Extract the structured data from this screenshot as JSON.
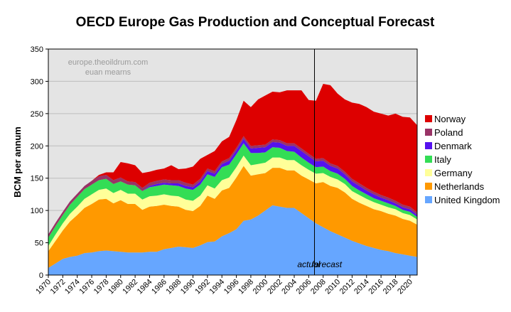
{
  "chart_data": {
    "type": "area",
    "title": "OECD Europe Gas Production and Conceptual Forecast",
    "xlabel": "",
    "ylabel": "BCM per annum",
    "xlim": [
      1970,
      2021
    ],
    "ylim": [
      0,
      350
    ],
    "y_ticks": [
      0,
      50,
      100,
      150,
      200,
      250,
      300,
      350
    ],
    "x_tick_labels": [
      "1970",
      "1972",
      "1974",
      "1976",
      "1978",
      "1980",
      "1982",
      "1984",
      "1986",
      "1988",
      "1990",
      "1992",
      "1994",
      "1996",
      "1998",
      "2000",
      "2002",
      "2004",
      "2006",
      "2008",
      "2010",
      "2012",
      "2014",
      "2016",
      "2018",
      "2020"
    ],
    "grid": true,
    "stacked": true,
    "legend_position": "right",
    "x": [
      1970,
      1971,
      1972,
      1973,
      1974,
      1975,
      1976,
      1977,
      1978,
      1979,
      1980,
      1981,
      1982,
      1983,
      1984,
      1985,
      1986,
      1987,
      1988,
      1989,
      1990,
      1991,
      1992,
      1993,
      1994,
      1995,
      1996,
      1997,
      1998,
      1999,
      2000,
      2001,
      2002,
      2003,
      2004,
      2005,
      2006,
      2007,
      2008,
      2009,
      2010,
      2011,
      2012,
      2013,
      2014,
      2015,
      2016,
      2017,
      2018,
      2019,
      2020,
      2021
    ],
    "series": [
      {
        "name": "United Kingdom",
        "color": "#66a6ff",
        "values": [
          11,
          18,
          25,
          28,
          30,
          34,
          35,
          37,
          38,
          37,
          36,
          35,
          35,
          35,
          36,
          36,
          40,
          42,
          44,
          43,
          42,
          46,
          51,
          52,
          60,
          65,
          71,
          84,
          86,
          92,
          100,
          108,
          106,
          104,
          104,
          96,
          88,
          80,
          74,
          68,
          63,
          58,
          53,
          49,
          45,
          42,
          39,
          37,
          34,
          32,
          30,
          28
        ]
      },
      {
        "name": "Netherlands",
        "color": "#ff9900",
        "values": [
          26,
          35,
          44,
          55,
          63,
          70,
          75,
          80,
          80,
          74,
          80,
          75,
          75,
          66,
          70,
          71,
          69,
          65,
          62,
          58,
          57,
          61,
          72,
          66,
          71,
          70,
          80,
          85,
          68,
          64,
          58,
          58,
          60,
          58,
          58,
          58,
          60,
          62,
          70,
          70,
          72,
          70,
          65,
          63,
          62,
          60,
          60,
          58,
          58,
          55,
          54,
          50
        ]
      },
      {
        "name": "Germany",
        "color": "#ffff99",
        "values": [
          8,
          10,
          11,
          12,
          13,
          14,
          15,
          15,
          16,
          16,
          16,
          16,
          16,
          16,
          16,
          16,
          16,
          16,
          16,
          16,
          16,
          16,
          16,
          16,
          16,
          16,
          16,
          16,
          16,
          16,
          16,
          16,
          16,
          16,
          16,
          16,
          15,
          15,
          14,
          14,
          13,
          13,
          12,
          12,
          11,
          11,
          10,
          10,
          10,
          9,
          9,
          8
        ]
      },
      {
        "name": "Italy",
        "color": "#33dd55",
        "values": [
          13,
          13,
          13,
          14,
          15,
          15,
          15,
          15,
          15,
          14,
          13,
          14,
          13,
          13,
          14,
          15,
          15,
          16,
          16,
          17,
          17,
          17,
          17,
          18,
          20,
          20,
          20,
          19,
          19,
          17,
          16,
          16,
          15,
          14,
          13,
          12,
          11,
          10,
          10,
          9,
          9,
          8,
          8,
          7,
          7,
          6,
          6,
          6,
          5,
          5,
          5,
          4
        ]
      },
      {
        "name": "Denmark",
        "color": "#5511ee",
        "values": [
          0,
          0,
          0,
          0,
          0,
          0,
          0,
          0,
          0,
          0,
          0,
          0,
          0,
          0,
          2,
          3,
          3,
          3,
          4,
          4,
          4,
          5,
          5,
          5,
          5,
          6,
          6,
          7,
          7,
          8,
          8,
          8,
          8,
          8,
          9,
          10,
          10,
          9,
          9,
          8,
          8,
          7,
          7,
          7,
          6,
          6,
          5,
          5,
          4,
          4,
          4,
          3
        ]
      },
      {
        "name": "Poland",
        "color": "#993366",
        "values": [
          5,
          5,
          5,
          5,
          5,
          5,
          6,
          6,
          6,
          6,
          6,
          5,
          5,
          5,
          5,
          5,
          5,
          5,
          5,
          5,
          4,
          4,
          4,
          4,
          4,
          4,
          4,
          4,
          4,
          4,
          4,
          4,
          4,
          4,
          4,
          4,
          4,
          4,
          4,
          4,
          4,
          4,
          4,
          4,
          4,
          4,
          4,
          4,
          4,
          4,
          4,
          4
        ]
      },
      {
        "name": "Norway",
        "color": "#dd0000",
        "values": [
          0,
          0,
          0,
          0,
          0,
          0,
          0,
          2,
          4,
          12,
          24,
          28,
          26,
          23,
          17,
          17,
          17,
          23,
          17,
          22,
          28,
          31,
          21,
          31,
          31,
          33,
          43,
          55,
          60,
          71,
          76,
          74,
          74,
          82,
          82,
          90,
          83,
          90,
          115,
          121,
          112,
          112,
          118,
          123,
          125,
          124,
          126,
          127,
          135,
          136,
          138,
          135
        ]
      }
    ],
    "annotations": [
      {
        "text": "actual",
        "x": 2006,
        "y": 12
      },
      {
        "text": "forecast",
        "x": 2008.5,
        "y": 12
      }
    ],
    "forecast_divider_x": 2006.8,
    "watermark": [
      "europe.theoildrum.com",
      "euan mearns"
    ]
  }
}
